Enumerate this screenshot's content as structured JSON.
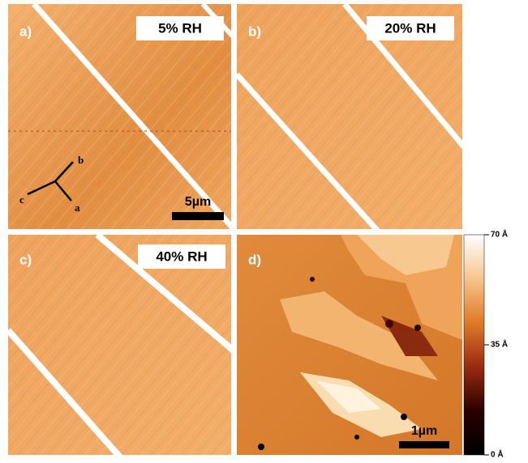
{
  "panels": [
    {
      "label": "a)",
      "condition": "5% RH",
      "scale_bar": "5µm",
      "axes": [
        "b",
        "c",
        "a"
      ]
    },
    {
      "label": "b)",
      "condition": "20% RH"
    },
    {
      "label": "c)",
      "condition": "40% RH"
    },
    {
      "label": "d)",
      "scale_bar": "1µm"
    }
  ],
  "colorbar": {
    "lim": [
      0,
      70
    ],
    "ticks": [
      {
        "value": 0,
        "label": "0 Å"
      },
      {
        "value": 35,
        "label": "35 Å"
      },
      {
        "value": 70,
        "label": "70 Å"
      }
    ]
  }
}
